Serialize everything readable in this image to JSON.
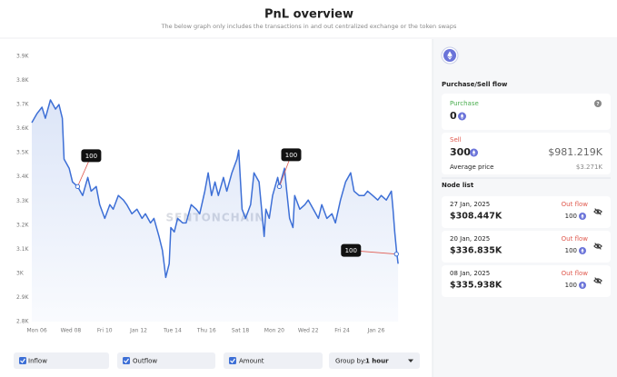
{
  "header": {
    "title": "PnL overview",
    "subtitle": "The below graph only includes the transactions in and out centralized exchange or the token swaps"
  },
  "chart_data": {
    "type": "line",
    "watermark": "SENTONCHAIN",
    "xlim": [
      5.7,
      27.4
    ],
    "xticks": [
      {
        "value": 6,
        "label": "Mon 06"
      },
      {
        "value": 8,
        "label": "Wed 08"
      },
      {
        "value": 10,
        "label": "Fri 10"
      },
      {
        "value": 12,
        "label": "Jan 12"
      },
      {
        "value": 14,
        "label": "Tue 14"
      },
      {
        "value": 16,
        "label": "Thu 16"
      },
      {
        "value": 18,
        "label": "Sat 18"
      },
      {
        "value": 20,
        "label": "Mon 20"
      },
      {
        "value": 22,
        "label": "Wed 22"
      },
      {
        "value": 24,
        "label": "Fri 24"
      },
      {
        "value": 26,
        "label": "Jan 26"
      }
    ],
    "ylim": [
      2800,
      3900
    ],
    "yticks": [
      {
        "value": 3900,
        "label": "3.9K"
      },
      {
        "value": 3800,
        "label": "3.8K"
      },
      {
        "value": 3700,
        "label": "3.7K"
      },
      {
        "value": 3600,
        "label": "3.6K"
      },
      {
        "value": 3500,
        "label": "3.5K"
      },
      {
        "value": 3400,
        "label": "3.4K"
      },
      {
        "value": 3300,
        "label": "3.3K"
      },
      {
        "value": 3200,
        "label": "3.2K"
      },
      {
        "value": 3100,
        "label": "3.1K"
      },
      {
        "value": 3000,
        "label": "3K"
      },
      {
        "value": 2900,
        "label": "2.9K"
      },
      {
        "value": 2800,
        "label": "2.8K"
      }
    ],
    "series": [
      {
        "color": "#3d6fd6",
        "x": [
          5.7,
          6.0,
          6.3,
          6.5,
          6.8,
          7.1,
          7.3,
          7.5,
          7.6,
          7.9,
          8.1,
          8.4,
          8.7,
          9.0,
          9.2,
          9.5,
          9.7,
          10.0,
          10.3,
          10.5,
          10.8,
          11.1,
          11.3,
          11.6,
          11.9,
          12.2,
          12.4,
          12.7,
          12.9,
          13.2,
          13.4,
          13.5,
          13.6,
          13.8,
          13.9,
          14.1,
          14.3,
          14.6,
          14.8,
          15.1,
          15.4,
          15.6,
          15.9,
          16.1,
          16.3,
          16.5,
          16.7,
          17.0,
          17.2,
          17.5,
          17.8,
          17.9,
          18.1,
          18.3,
          18.6,
          18.8,
          19.1,
          19.4,
          19.5,
          19.7,
          19.9,
          20.2,
          20.3,
          20.6,
          20.7,
          20.9,
          21.1,
          21.2,
          21.5,
          21.8,
          22.0,
          22.3,
          22.6,
          22.8,
          23.1,
          23.4,
          23.6,
          23.9,
          24.2,
          24.5,
          24.7,
          25.0,
          25.3,
          25.5,
          25.8,
          26.1,
          26.3,
          26.6,
          26.9,
          27.0,
          27.1,
          27.2,
          27.3
        ],
        "values": [
          3625,
          3662,
          3689,
          3643,
          3719,
          3681,
          3700,
          3643,
          3474,
          3436,
          3379,
          3360,
          3323,
          3398,
          3341,
          3360,
          3285,
          3228,
          3285,
          3266,
          3323,
          3304,
          3285,
          3247,
          3266,
          3228,
          3247,
          3209,
          3228,
          3153,
          3096,
          3040,
          2983,
          3040,
          3190,
          3172,
          3228,
          3209,
          3209,
          3285,
          3266,
          3247,
          3341,
          3417,
          3323,
          3379,
          3323,
          3398,
          3341,
          3417,
          3474,
          3511,
          3266,
          3228,
          3285,
          3417,
          3379,
          3153,
          3266,
          3228,
          3323,
          3398,
          3360,
          3436,
          3360,
          3228,
          3190,
          3323,
          3266,
          3285,
          3304,
          3266,
          3228,
          3285,
          3228,
          3247,
          3209,
          3304,
          3379,
          3417,
          3341,
          3323,
          3323,
          3341,
          3323,
          3304,
          3323,
          3304,
          3341,
          3266,
          3172,
          3096,
          3040
        ]
      }
    ],
    "annotations": [
      {
        "x": 8.4,
        "y": 3360,
        "text": "100"
      },
      {
        "x": 20.3,
        "y": 3360,
        "text": "100"
      },
      {
        "x": 27.2,
        "y": 3080,
        "text": "100"
      }
    ]
  },
  "controls": {
    "toggles": [
      "Inflow",
      "Outflow",
      "Amount"
    ],
    "group_by_label": "Group by:",
    "group_by": "1 hour"
  },
  "panel": {
    "heading": "Purchase/Sell flow",
    "purchase": {
      "label": "Purchase",
      "amount": 0
    },
    "sell": {
      "label": "Sell",
      "amount": 300,
      "value": "$981.219K",
      "avg_label": "Average price",
      "avg_price": "$3.271K"
    },
    "node_list": {
      "heading": "Node list",
      "items": [
        {
          "date": "27 Jan, 2025",
          "value": "$308.447K",
          "flow": "Out flow",
          "amount": 100
        },
        {
          "date": "20 Jan, 2025",
          "value": "$336.835K",
          "flow": "Out flow",
          "amount": 100
        },
        {
          "date": "08 Jan, 2025",
          "value": "$335.938K",
          "flow": "Out flow",
          "amount": 100
        }
      ]
    }
  }
}
